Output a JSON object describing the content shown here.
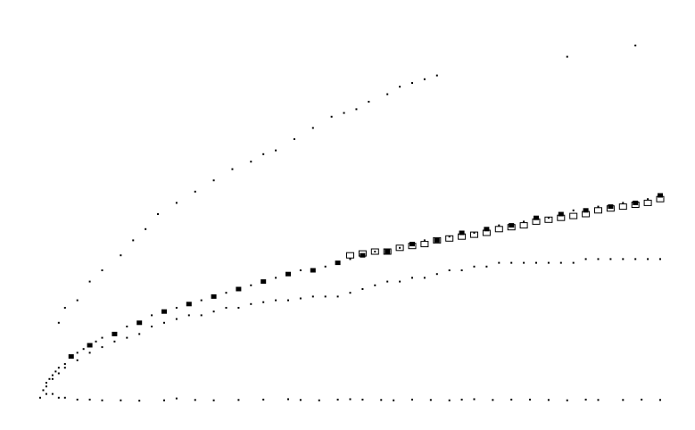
{
  "chart_data": {
    "type": "scatter",
    "xlim": [
      0,
      100
    ],
    "ylim": [
      0,
      100
    ],
    "grid": false,
    "legend": "none",
    "colors": {
      "marker": "#000000",
      "background": "#ffffff"
    },
    "series": [
      {
        "marker": "dot",
        "points": [
          [
            3,
            21
          ],
          [
            4,
            25
          ],
          [
            6,
            27
          ],
          [
            8,
            32
          ],
          [
            10,
            35
          ],
          [
            13,
            39
          ],
          [
            15,
            43
          ],
          [
            17,
            46
          ],
          [
            19,
            50
          ],
          [
            22,
            53
          ],
          [
            25,
            56
          ],
          [
            28,
            59
          ],
          [
            31,
            62
          ],
          [
            34,
            64
          ],
          [
            36,
            66
          ],
          [
            38,
            67
          ],
          [
            41,
            70
          ],
          [
            44,
            73
          ],
          [
            47,
            76
          ],
          [
            49,
            77
          ],
          [
            51,
            78
          ],
          [
            53,
            80
          ],
          [
            56,
            82
          ],
          [
            58,
            84
          ],
          [
            60,
            85
          ],
          [
            62,
            86
          ],
          [
            64,
            87
          ],
          [
            85,
            92
          ],
          [
            96,
            95
          ]
        ]
      },
      {
        "marker": "dot",
        "points": [
          [
            0,
            1
          ],
          [
            0.5,
            3
          ],
          [
            1,
            5
          ],
          [
            1.5,
            6
          ],
          [
            2,
            7
          ],
          [
            2.5,
            8
          ],
          [
            3,
            9
          ],
          [
            4,
            10
          ],
          [
            5,
            12
          ],
          [
            6,
            13
          ],
          [
            7,
            14
          ],
          [
            8,
            15
          ],
          [
            9,
            16
          ],
          [
            10,
            17
          ],
          [
            12,
            18
          ],
          [
            14,
            20
          ],
          [
            16,
            21
          ],
          [
            18,
            23
          ],
          [
            20,
            24
          ],
          [
            22,
            25
          ],
          [
            24,
            26
          ],
          [
            26,
            27
          ],
          [
            28,
            28
          ],
          [
            30,
            29
          ],
          [
            32,
            30
          ],
          [
            34,
            31
          ],
          [
            36,
            32
          ],
          [
            38,
            33
          ],
          [
            40,
            34
          ],
          [
            42,
            35
          ],
          [
            44,
            35
          ],
          [
            46,
            36
          ],
          [
            48,
            37
          ],
          [
            50,
            38
          ],
          [
            52,
            39
          ],
          [
            54,
            40
          ],
          [
            56,
            40
          ],
          [
            58,
            41
          ],
          [
            60,
            42
          ],
          [
            62,
            43
          ],
          [
            64,
            43
          ],
          [
            66,
            44
          ],
          [
            68,
            45
          ],
          [
            70,
            45
          ],
          [
            72,
            46
          ],
          [
            74,
            47
          ],
          [
            76,
            47
          ],
          [
            78,
            48
          ],
          [
            80,
            49
          ],
          [
            82,
            49
          ],
          [
            84,
            50
          ],
          [
            86,
            51
          ],
          [
            88,
            51
          ],
          [
            90,
            52
          ],
          [
            92,
            52
          ],
          [
            94,
            53
          ],
          [
            96,
            53
          ],
          [
            98,
            54
          ],
          [
            100,
            55
          ]
        ]
      },
      {
        "marker": "dot",
        "points": [
          [
            1,
            4
          ],
          [
            2,
            6
          ],
          [
            3,
            7.5
          ],
          [
            4,
            9
          ],
          [
            6,
            11
          ],
          [
            8,
            13
          ],
          [
            10,
            14.5
          ],
          [
            12,
            16
          ],
          [
            14,
            17
          ],
          [
            16,
            18
          ],
          [
            18,
            20
          ],
          [
            20,
            21
          ],
          [
            22,
            22
          ],
          [
            24,
            23
          ],
          [
            26,
            23
          ],
          [
            28,
            24
          ],
          [
            30,
            25
          ],
          [
            32,
            25
          ],
          [
            34,
            26
          ],
          [
            36,
            26.5
          ],
          [
            38,
            27
          ],
          [
            40,
            27
          ],
          [
            42,
            27.5
          ],
          [
            44,
            28
          ],
          [
            46,
            28
          ],
          [
            48,
            28
          ],
          [
            50,
            29
          ],
          [
            52,
            30
          ],
          [
            54,
            31
          ],
          [
            56,
            32
          ],
          [
            58,
            32
          ],
          [
            60,
            33
          ],
          [
            62,
            33
          ],
          [
            64,
            34
          ],
          [
            66,
            35
          ],
          [
            68,
            35
          ],
          [
            70,
            36
          ],
          [
            72,
            36
          ],
          [
            74,
            37
          ],
          [
            76,
            37
          ],
          [
            78,
            37
          ],
          [
            80,
            37
          ],
          [
            82,
            37
          ],
          [
            84,
            37
          ],
          [
            86,
            37
          ],
          [
            88,
            38
          ],
          [
            90,
            38
          ],
          [
            92,
            38
          ],
          [
            94,
            38
          ],
          [
            96,
            38
          ],
          [
            98,
            38
          ],
          [
            100,
            38
          ]
        ]
      },
      {
        "marker": "dot",
        "points": [
          [
            1,
            2
          ],
          [
            2,
            2
          ],
          [
            3,
            1
          ],
          [
            4,
            1
          ],
          [
            6,
            0.5
          ],
          [
            8,
            0.5
          ],
          [
            10,
            0.3
          ],
          [
            13,
            0.3
          ],
          [
            16,
            0.2
          ],
          [
            20,
            0.3
          ],
          [
            22,
            0.8
          ],
          [
            25,
            0.4
          ],
          [
            28,
            0.3
          ],
          [
            32,
            0.4
          ],
          [
            36,
            0.5
          ],
          [
            40,
            0.6
          ],
          [
            42,
            0.4
          ],
          [
            45,
            0.3
          ],
          [
            48,
            0.5
          ],
          [
            50,
            0.6
          ],
          [
            52,
            0.5
          ],
          [
            55,
            0.4
          ],
          [
            57,
            0.3
          ],
          [
            60,
            0.5
          ],
          [
            63,
            0.4
          ],
          [
            66,
            0.3
          ],
          [
            68,
            0.5
          ],
          [
            70,
            0.6
          ],
          [
            73,
            0.4
          ],
          [
            76,
            0.5
          ],
          [
            79,
            0.5
          ],
          [
            82,
            0.4
          ],
          [
            85,
            0.3
          ],
          [
            88,
            0.5
          ],
          [
            90,
            0.4
          ],
          [
            94,
            0.4
          ],
          [
            97,
            0.5
          ],
          [
            100,
            0.4
          ]
        ]
      },
      {
        "marker": "square-open",
        "points": [
          [
            50,
            39
          ],
          [
            52,
            39.5
          ],
          [
            54,
            40
          ],
          [
            56,
            40
          ],
          [
            58,
            41
          ],
          [
            60,
            41.5
          ],
          [
            62,
            42
          ],
          [
            64,
            43
          ],
          [
            66,
            43.5
          ],
          [
            68,
            44
          ],
          [
            70,
            44.5
          ],
          [
            72,
            45
          ],
          [
            74,
            46
          ],
          [
            76,
            46.5
          ],
          [
            78,
            47
          ],
          [
            80,
            48
          ],
          [
            82,
            48.5
          ],
          [
            84,
            49
          ],
          [
            86,
            49.5
          ],
          [
            88,
            50
          ],
          [
            90,
            51
          ],
          [
            92,
            51.5
          ],
          [
            94,
            52
          ],
          [
            96,
            52.5
          ],
          [
            98,
            53
          ],
          [
            100,
            54
          ]
        ]
      },
      {
        "marker": "square-filled",
        "points": [
          [
            5,
            12
          ],
          [
            8,
            15
          ],
          [
            12,
            18
          ],
          [
            16,
            21
          ],
          [
            20,
            24
          ],
          [
            24,
            26
          ],
          [
            28,
            28
          ],
          [
            32,
            30
          ],
          [
            36,
            32
          ],
          [
            40,
            34
          ],
          [
            44,
            35
          ],
          [
            48,
            37
          ],
          [
            52,
            39
          ],
          [
            56,
            40
          ],
          [
            60,
            42
          ],
          [
            64,
            43
          ],
          [
            68,
            45
          ],
          [
            72,
            46
          ],
          [
            76,
            47
          ],
          [
            80,
            49
          ],
          [
            84,
            50
          ],
          [
            88,
            51
          ],
          [
            92,
            52
          ],
          [
            96,
            53
          ],
          [
            100,
            55
          ]
        ]
      }
    ]
  }
}
